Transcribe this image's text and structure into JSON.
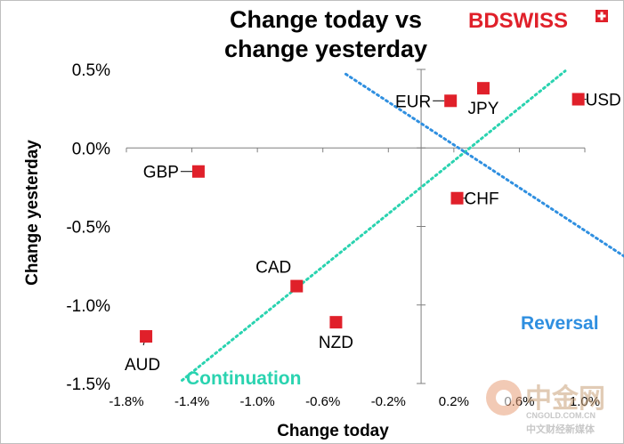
{
  "chart_data": {
    "type": "scatter",
    "title_line1": "Change today vs",
    "title_line2": "change yesterday",
    "xlabel": "Change today",
    "ylabel": "Change yesterday",
    "xlim": [
      -1.8,
      1.0
    ],
    "ylim": [
      -1.5,
      0.5
    ],
    "x_ticks": [
      -1.8,
      -1.4,
      -1.0,
      -0.6,
      -0.2,
      0.2,
      0.6,
      1.0
    ],
    "x_tick_labels": [
      "-1.8%",
      "-1.4%",
      "-1.0%",
      "-0.6%",
      "-0.2%",
      "0.2%",
      "0.6%",
      "1.0%"
    ],
    "y_ticks": [
      0.5,
      0.0,
      -0.5,
      -1.0,
      -1.5
    ],
    "y_tick_labels": [
      "0.5%",
      "0.0%",
      "-0.5%",
      "-1.0%",
      "-1.5%"
    ],
    "points": [
      {
        "label": "EUR",
        "x": 0.18,
        "y": 0.3,
        "label_pos": "left"
      },
      {
        "label": "JPY",
        "x": 0.38,
        "y": 0.38,
        "label_pos": "below"
      },
      {
        "label": "USD",
        "x": 0.96,
        "y": 0.31,
        "label_pos": "right"
      },
      {
        "label": "CHF",
        "x": 0.22,
        "y": -0.32,
        "label_pos": "right"
      },
      {
        "label": "GBP",
        "x": -1.36,
        "y": -0.15,
        "label_pos": "left"
      },
      {
        "label": "CAD",
        "x": -0.76,
        "y": -0.88,
        "label_pos": "above-left"
      },
      {
        "label": "NZD",
        "x": -0.52,
        "y": -1.11,
        "label_pos": "below"
      },
      {
        "label": "AUD",
        "x": -1.68,
        "y": -1.2,
        "label_pos": "below-left"
      }
    ],
    "lines": [
      {
        "name": "Continuation",
        "color": "#2ad3b0",
        "from": [
          -1.46,
          -1.48
        ],
        "to": [
          0.88,
          0.49
        ]
      },
      {
        "name": "Reversal",
        "color": "#2f8fe0",
        "from": [
          -0.46,
          0.47
        ],
        "to": [
          1.68,
          -0.99
        ]
      }
    ],
    "annotations": {
      "continuation": "Continuation",
      "reversal": "Reversal"
    },
    "grid": false,
    "point_color": "#e0202a"
  },
  "branding": {
    "logo_text": "BDSWISS",
    "logo_color": "#e0202a",
    "watermark_text": "中金网",
    "watermark_url": "CNGOLD.COM.CN",
    "watermark_sub": "中文财经新媒体"
  }
}
